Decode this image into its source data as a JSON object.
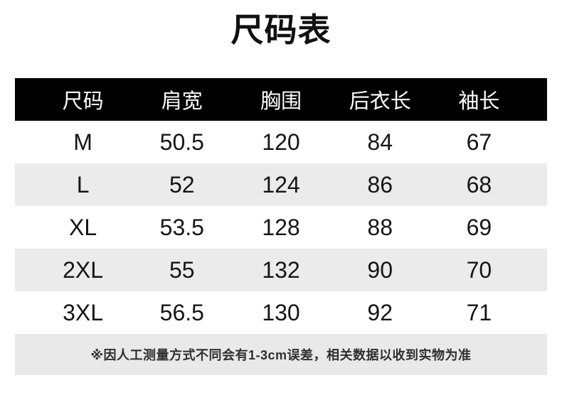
{
  "chart_data": {
    "type": "table",
    "title": "尺码表",
    "columns": [
      "尺码",
      "肩宽",
      "胸围",
      "后衣长",
      "袖长"
    ],
    "rows": [
      [
        "M",
        "50.5",
        "120",
        "84",
        "67"
      ],
      [
        "L",
        "52",
        "124",
        "86",
        "68"
      ],
      [
        "XL",
        "53.5",
        "128",
        "88",
        "69"
      ],
      [
        "2XL",
        "55",
        "132",
        "90",
        "70"
      ],
      [
        "3XL",
        "56.5",
        "130",
        "92",
        "71"
      ]
    ],
    "note": "※因人工测量方式不同会有1-3cm误差，相关数据以收到实物为准",
    "layout": "header row black with white text, data rows alternate white and light gray, note bar gray, all cells center-aligned"
  },
  "colors": {
    "header_bg": "#000000",
    "header_text": "#ffffff",
    "row_bg": "#ffffff",
    "row_alt_bg": "#ebebeb",
    "note_bg": "#e9e9e9",
    "note_text": "#2f2f2f",
    "title_text": "#111111"
  }
}
